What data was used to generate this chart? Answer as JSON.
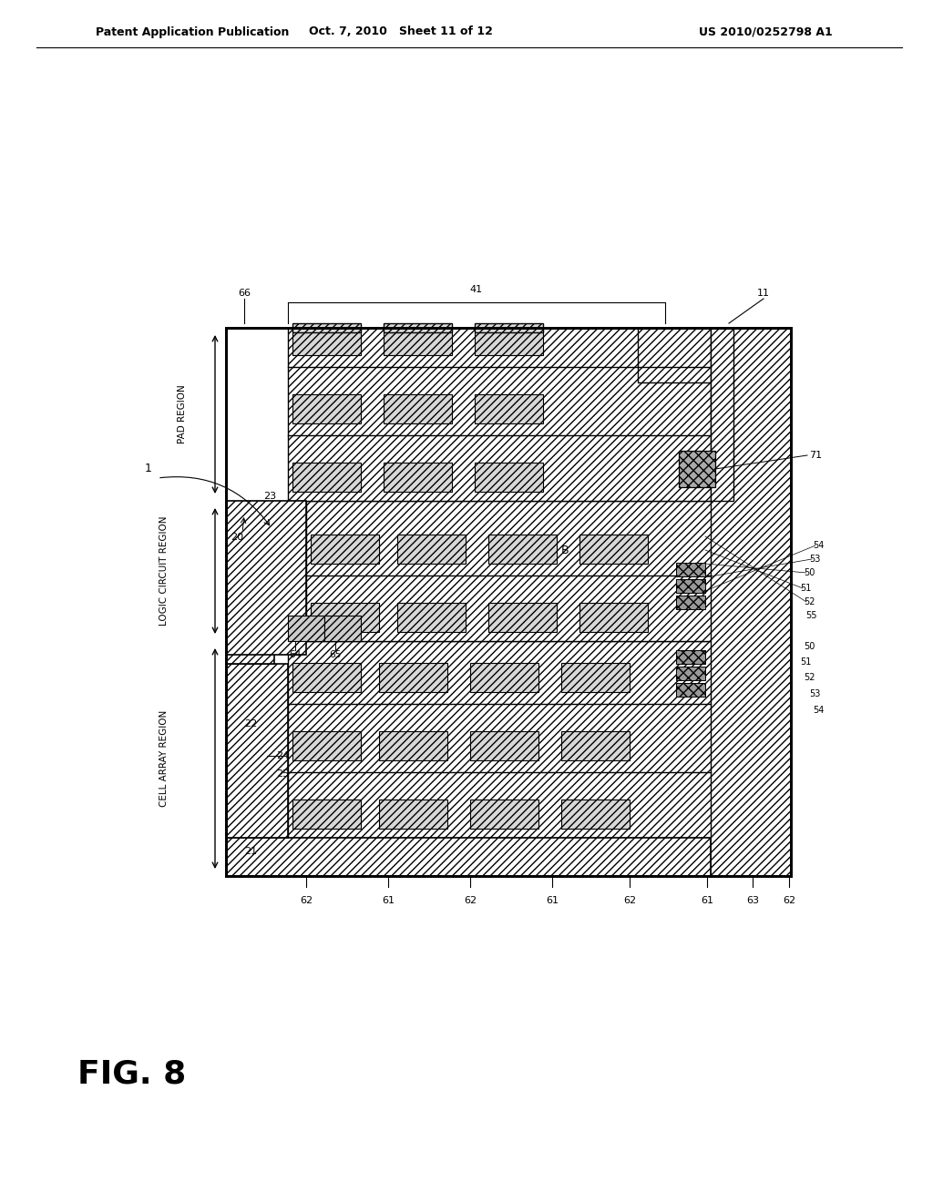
{
  "header_left": "Patent Application Publication",
  "header_mid": "Oct. 7, 2010   Sheet 11 of 12",
  "header_right": "US 2010/0252798 A1",
  "fig_label": "FIG. 8",
  "bg_color": "#ffffff"
}
